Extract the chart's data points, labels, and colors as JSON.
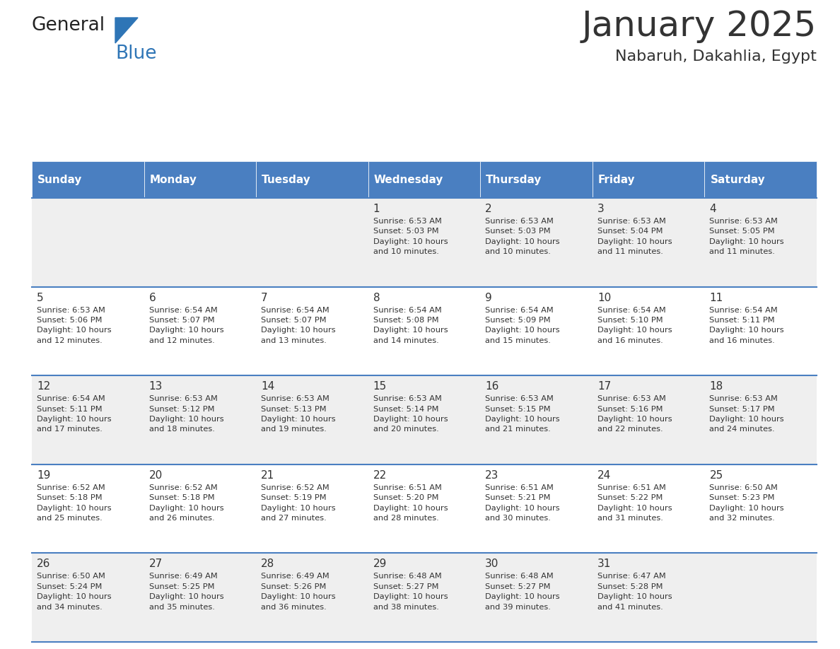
{
  "title": "January 2025",
  "subtitle": "Nabaruh, Dakahlia, Egypt",
  "header_bg": "#4a7fc1",
  "header_text_color": "#FFFFFF",
  "days_of_week": [
    "Sunday",
    "Monday",
    "Tuesday",
    "Wednesday",
    "Thursday",
    "Friday",
    "Saturday"
  ],
  "cell_bg_even": "#EFEFEF",
  "cell_bg_odd": "#FFFFFF",
  "separator_color": "#4a7fc1",
  "text_color": "#333333",
  "logo_general_color": "#222222",
  "logo_blue_color": "#2E75B6",
  "calendar": [
    [
      {
        "day": "",
        "info": ""
      },
      {
        "day": "",
        "info": ""
      },
      {
        "day": "",
        "info": ""
      },
      {
        "day": "1",
        "info": "Sunrise: 6:53 AM\nSunset: 5:03 PM\nDaylight: 10 hours\nand 10 minutes."
      },
      {
        "day": "2",
        "info": "Sunrise: 6:53 AM\nSunset: 5:03 PM\nDaylight: 10 hours\nand 10 minutes."
      },
      {
        "day": "3",
        "info": "Sunrise: 6:53 AM\nSunset: 5:04 PM\nDaylight: 10 hours\nand 11 minutes."
      },
      {
        "day": "4",
        "info": "Sunrise: 6:53 AM\nSunset: 5:05 PM\nDaylight: 10 hours\nand 11 minutes."
      }
    ],
    [
      {
        "day": "5",
        "info": "Sunrise: 6:53 AM\nSunset: 5:06 PM\nDaylight: 10 hours\nand 12 minutes."
      },
      {
        "day": "6",
        "info": "Sunrise: 6:54 AM\nSunset: 5:07 PM\nDaylight: 10 hours\nand 12 minutes."
      },
      {
        "day": "7",
        "info": "Sunrise: 6:54 AM\nSunset: 5:07 PM\nDaylight: 10 hours\nand 13 minutes."
      },
      {
        "day": "8",
        "info": "Sunrise: 6:54 AM\nSunset: 5:08 PM\nDaylight: 10 hours\nand 14 minutes."
      },
      {
        "day": "9",
        "info": "Sunrise: 6:54 AM\nSunset: 5:09 PM\nDaylight: 10 hours\nand 15 minutes."
      },
      {
        "day": "10",
        "info": "Sunrise: 6:54 AM\nSunset: 5:10 PM\nDaylight: 10 hours\nand 16 minutes."
      },
      {
        "day": "11",
        "info": "Sunrise: 6:54 AM\nSunset: 5:11 PM\nDaylight: 10 hours\nand 16 minutes."
      }
    ],
    [
      {
        "day": "12",
        "info": "Sunrise: 6:54 AM\nSunset: 5:11 PM\nDaylight: 10 hours\nand 17 minutes."
      },
      {
        "day": "13",
        "info": "Sunrise: 6:53 AM\nSunset: 5:12 PM\nDaylight: 10 hours\nand 18 minutes."
      },
      {
        "day": "14",
        "info": "Sunrise: 6:53 AM\nSunset: 5:13 PM\nDaylight: 10 hours\nand 19 minutes."
      },
      {
        "day": "15",
        "info": "Sunrise: 6:53 AM\nSunset: 5:14 PM\nDaylight: 10 hours\nand 20 minutes."
      },
      {
        "day": "16",
        "info": "Sunrise: 6:53 AM\nSunset: 5:15 PM\nDaylight: 10 hours\nand 21 minutes."
      },
      {
        "day": "17",
        "info": "Sunrise: 6:53 AM\nSunset: 5:16 PM\nDaylight: 10 hours\nand 22 minutes."
      },
      {
        "day": "18",
        "info": "Sunrise: 6:53 AM\nSunset: 5:17 PM\nDaylight: 10 hours\nand 24 minutes."
      }
    ],
    [
      {
        "day": "19",
        "info": "Sunrise: 6:52 AM\nSunset: 5:18 PM\nDaylight: 10 hours\nand 25 minutes."
      },
      {
        "day": "20",
        "info": "Sunrise: 6:52 AM\nSunset: 5:18 PM\nDaylight: 10 hours\nand 26 minutes."
      },
      {
        "day": "21",
        "info": "Sunrise: 6:52 AM\nSunset: 5:19 PM\nDaylight: 10 hours\nand 27 minutes."
      },
      {
        "day": "22",
        "info": "Sunrise: 6:51 AM\nSunset: 5:20 PM\nDaylight: 10 hours\nand 28 minutes."
      },
      {
        "day": "23",
        "info": "Sunrise: 6:51 AM\nSunset: 5:21 PM\nDaylight: 10 hours\nand 30 minutes."
      },
      {
        "day": "24",
        "info": "Sunrise: 6:51 AM\nSunset: 5:22 PM\nDaylight: 10 hours\nand 31 minutes."
      },
      {
        "day": "25",
        "info": "Sunrise: 6:50 AM\nSunset: 5:23 PM\nDaylight: 10 hours\nand 32 minutes."
      }
    ],
    [
      {
        "day": "26",
        "info": "Sunrise: 6:50 AM\nSunset: 5:24 PM\nDaylight: 10 hours\nand 34 minutes."
      },
      {
        "day": "27",
        "info": "Sunrise: 6:49 AM\nSunset: 5:25 PM\nDaylight: 10 hours\nand 35 minutes."
      },
      {
        "day": "28",
        "info": "Sunrise: 6:49 AM\nSunset: 5:26 PM\nDaylight: 10 hours\nand 36 minutes."
      },
      {
        "day": "29",
        "info": "Sunrise: 6:48 AM\nSunset: 5:27 PM\nDaylight: 10 hours\nand 38 minutes."
      },
      {
        "day": "30",
        "info": "Sunrise: 6:48 AM\nSunset: 5:27 PM\nDaylight: 10 hours\nand 39 minutes."
      },
      {
        "day": "31",
        "info": "Sunrise: 6:47 AM\nSunset: 5:28 PM\nDaylight: 10 hours\nand 41 minutes."
      },
      {
        "day": "",
        "info": ""
      }
    ]
  ]
}
